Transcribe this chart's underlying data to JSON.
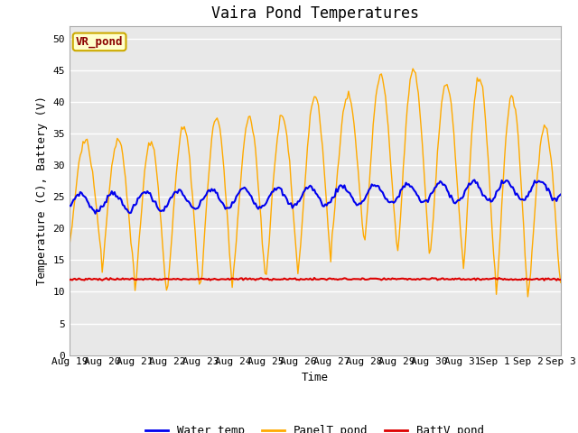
{
  "title": "Vaira Pond Temperatures",
  "xlabel": "Time",
  "ylabel": "Temperature (C), Battery (V)",
  "ylim": [
    0,
    52
  ],
  "yticks": [
    0,
    5,
    10,
    15,
    20,
    25,
    30,
    35,
    40,
    45,
    50
  ],
  "x_labels": [
    "Aug 19",
    "Aug 20",
    "Aug 21",
    "Aug 22",
    "Aug 23",
    "Aug 24",
    "Aug 25",
    "Aug 26",
    "Aug 27",
    "Aug 28",
    "Aug 29",
    "Aug 30",
    "Aug 31",
    "Sep 1",
    "Sep 2",
    "Sep 3"
  ],
  "site_label": "VR_pond",
  "water_color": "#0000ee",
  "panel_color": "#ffaa00",
  "batt_color": "#dd0000",
  "legend_labels": [
    "Water_temp",
    "PanelT_pond",
    "BattV_pond"
  ],
  "plot_bg_color": "#e8e8e8",
  "grid_color": "#ffffff",
  "title_fontsize": 12,
  "label_fontsize": 9,
  "tick_fontsize": 8,
  "site_label_color": "#8b0000",
  "site_box_face": "#ffffcc",
  "site_box_edge": "#ccaa00"
}
